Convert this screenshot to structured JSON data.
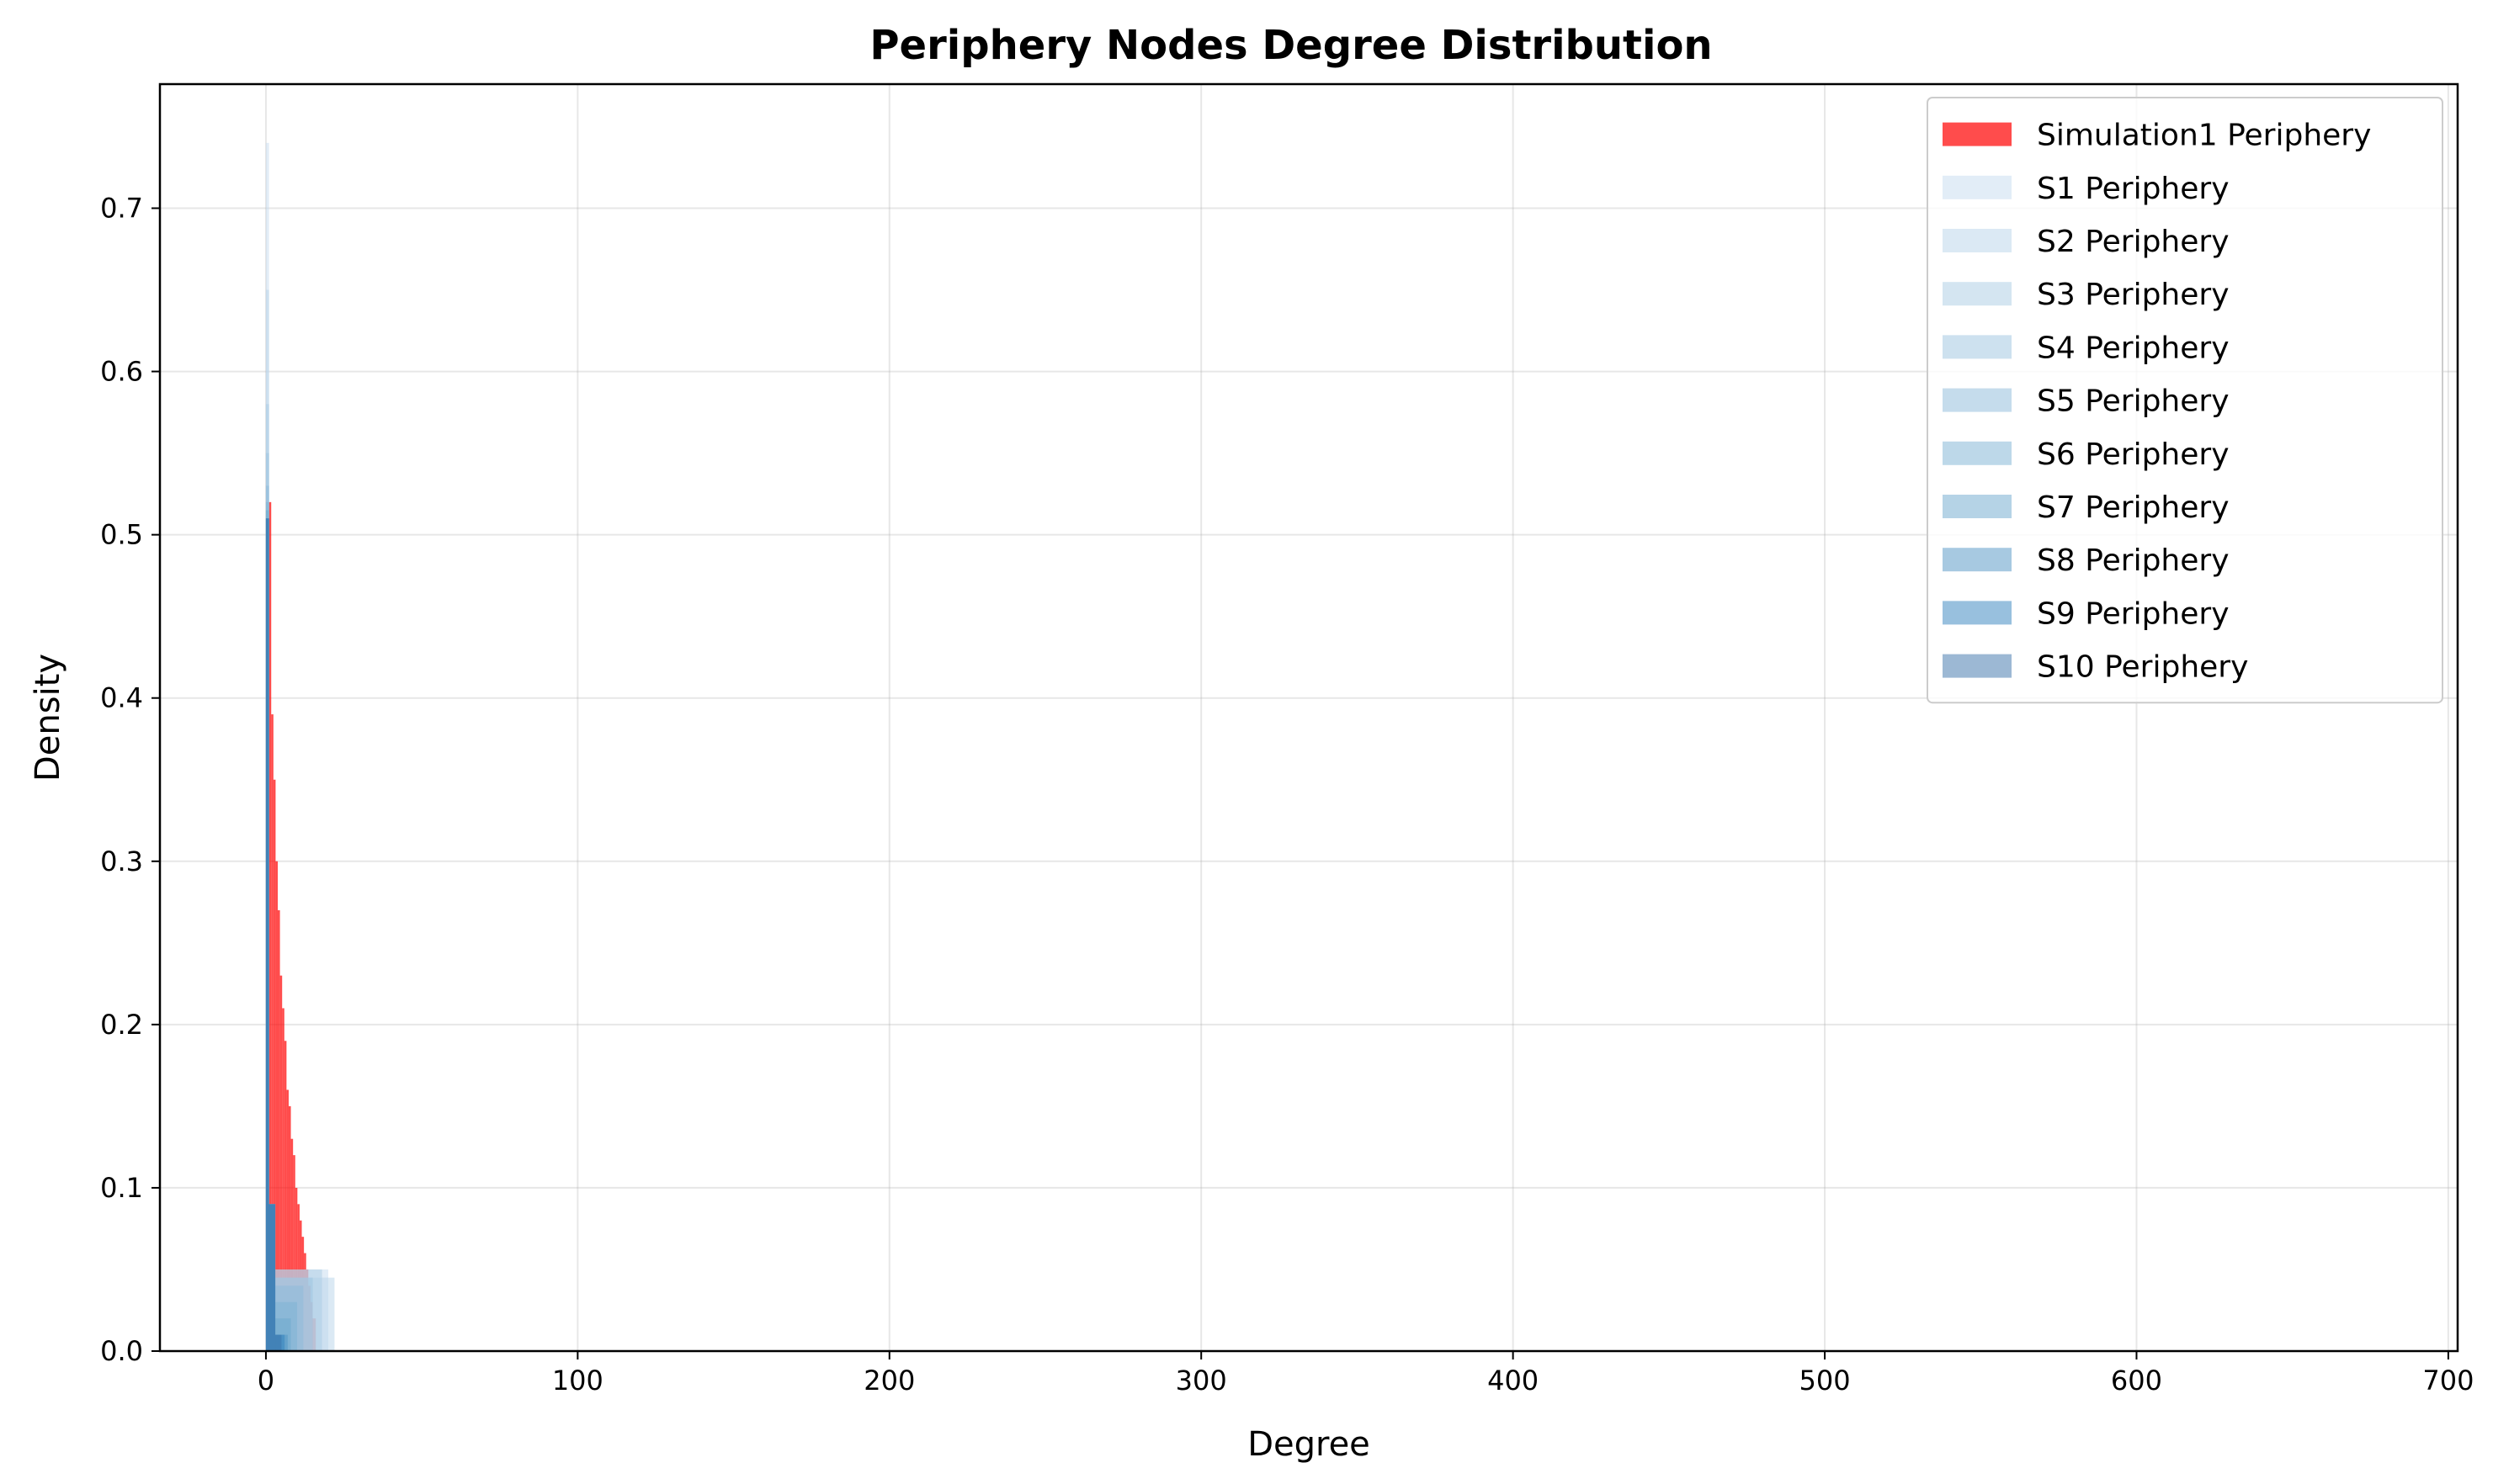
{
  "chart_data": {
    "type": "bar",
    "title": "Periphery Nodes Degree Distribution",
    "xlabel": "Degree",
    "ylabel": "Density",
    "xlim": [
      -34,
      703
    ],
    "ylim": [
      0,
      0.776
    ],
    "xticks": [
      0,
      100,
      200,
      300,
      400,
      500,
      600,
      700
    ],
    "yticks": [
      0.0,
      0.1,
      0.2,
      0.3,
      0.4,
      0.5,
      0.6,
      0.7
    ],
    "xtick_labels": [
      "0",
      "100",
      "200",
      "300",
      "400",
      "500",
      "600",
      "700"
    ],
    "ytick_labels": [
      "0.0",
      "0.1",
      "0.2",
      "0.3",
      "0.4",
      "0.5",
      "0.6",
      "0.7"
    ],
    "grid": true,
    "legend_position": "top-right",
    "series": [
      {
        "name": "Simulation1 Periphery",
        "color": "#ff0000",
        "alpha": 0.7,
        "bins": [
          [
            1,
            1.7,
            0.52
          ],
          [
            1.7,
            2.4,
            0.39
          ],
          [
            2.4,
            3.1,
            0.35
          ],
          [
            3.1,
            3.8,
            0.3
          ],
          [
            3.8,
            4.5,
            0.27
          ],
          [
            4.5,
            5.2,
            0.23
          ],
          [
            5.2,
            5.9,
            0.21
          ],
          [
            5.9,
            6.6,
            0.19
          ],
          [
            6.6,
            7.3,
            0.16
          ],
          [
            7.3,
            8,
            0.15
          ],
          [
            8,
            8.7,
            0.13
          ],
          [
            8.7,
            9.4,
            0.12
          ],
          [
            9.4,
            10.1,
            0.1
          ],
          [
            10.1,
            10.8,
            0.09
          ],
          [
            10.8,
            11.5,
            0.08
          ],
          [
            11.5,
            12.2,
            0.07
          ],
          [
            12.2,
            12.9,
            0.06
          ],
          [
            12.9,
            13.6,
            0.05
          ],
          [
            13.6,
            14.3,
            0.04
          ],
          [
            14.3,
            15,
            0.03
          ],
          [
            15,
            16,
            0.02
          ]
        ]
      },
      {
        "name": "S1 Periphery",
        "color": "#c6dbef",
        "alpha": 0.5,
        "bins": [
          [
            0,
            1,
            0.74
          ],
          [
            1,
            3,
            0.08
          ],
          [
            3,
            20,
            0.05
          ]
        ]
      },
      {
        "name": "S2 Periphery",
        "color": "#b8d4ea",
        "alpha": 0.5,
        "bins": [
          [
            0,
            1,
            0.65
          ],
          [
            1,
            3,
            0.09
          ],
          [
            3,
            22,
            0.045
          ]
        ]
      },
      {
        "name": "S3 Periphery",
        "color": "#a9cce4",
        "alpha": 0.5,
        "bins": [
          [
            0,
            1,
            0.58
          ],
          [
            1,
            3,
            0.09
          ],
          [
            3,
            18,
            0.05
          ]
        ]
      },
      {
        "name": "S4 Periphery",
        "color": "#9bc3df",
        "alpha": 0.5,
        "bins": [
          [
            0,
            1,
            0.55
          ],
          [
            1,
            3,
            0.09
          ],
          [
            3,
            15,
            0.045
          ]
        ]
      },
      {
        "name": "S5 Periphery",
        "color": "#8cbad9",
        "alpha": 0.5,
        "bins": [
          [
            0,
            1,
            0.53
          ],
          [
            1,
            3,
            0.09
          ],
          [
            3,
            12,
            0.04
          ]
        ]
      },
      {
        "name": "S6 Periphery",
        "color": "#7cb1d4",
        "alpha": 0.5,
        "bins": [
          [
            0,
            1,
            0.52
          ],
          [
            1,
            3,
            0.09
          ],
          [
            3,
            10,
            0.03
          ]
        ]
      },
      {
        "name": "S7 Periphery",
        "color": "#6ba7ce",
        "alpha": 0.5,
        "bins": [
          [
            0,
            1,
            0.515
          ],
          [
            1,
            3,
            0.09
          ],
          [
            3,
            8,
            0.02
          ]
        ]
      },
      {
        "name": "S8 Periphery",
        "color": "#4f94c4",
        "alpha": 0.5,
        "bins": [
          [
            0,
            1,
            0.51
          ],
          [
            1,
            3,
            0.09
          ],
          [
            3,
            7,
            0.01
          ]
        ]
      },
      {
        "name": "S9 Periphery",
        "color": "#3182bd",
        "alpha": 0.5,
        "bins": [
          [
            0,
            1,
            0.51
          ],
          [
            1,
            3,
            0.09
          ],
          [
            3,
            6,
            0.01
          ]
        ]
      },
      {
        "name": "S10 Periphery",
        "color": "#3a72aa",
        "alpha": 0.5,
        "bins": [
          [
            0,
            1,
            0.51
          ],
          [
            1,
            3,
            0.09
          ],
          [
            3,
            5,
            0.01
          ]
        ]
      }
    ]
  }
}
